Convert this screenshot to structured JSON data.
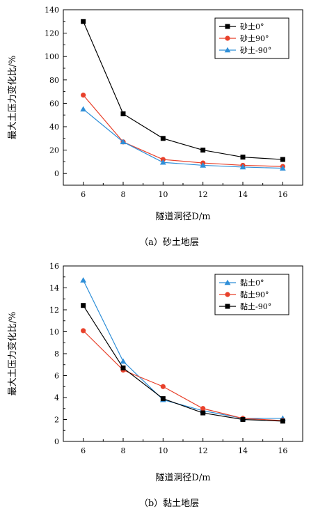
{
  "chart_data": [
    {
      "type": "line",
      "caption": "（a）砂土地层",
      "xlabel": "隧道洞径D/m",
      "ylabel": "最大土压力变化比/%",
      "x": [
        6,
        8,
        10,
        12,
        14,
        16
      ],
      "xlim": [
        5,
        17
      ],
      "ylim": [
        -10,
        140
      ],
      "yticks": [
        0,
        20,
        40,
        60,
        80,
        100,
        120,
        140
      ],
      "xticks": [
        6,
        8,
        10,
        12,
        14,
        16
      ],
      "legend": "top-right",
      "series": [
        {
          "name": "砂土0°",
          "marker": "square",
          "color": "#000000",
          "values": [
            130,
            51,
            30,
            20,
            14,
            12
          ]
        },
        {
          "name": "砂土90°",
          "marker": "circle",
          "color": "#e8402a",
          "values": [
            67,
            27,
            12,
            9,
            7,
            6
          ]
        },
        {
          "name": "砂土-90°",
          "marker": "triangle",
          "color": "#2f8fd8",
          "values": [
            55,
            27,
            9.5,
            7,
            5.5,
            4.5
          ]
        }
      ]
    },
    {
      "type": "line",
      "caption": "（b）黏土地层",
      "xlabel": "隧道洞径D/m",
      "ylabel": "最大土压力变化比/%",
      "x": [
        6,
        8,
        10,
        12,
        14,
        16
      ],
      "xlim": [
        5,
        17
      ],
      "ylim": [
        0,
        16
      ],
      "yticks": [
        0,
        2,
        4,
        6,
        8,
        10,
        12,
        14,
        16
      ],
      "xticks": [
        6,
        8,
        10,
        12,
        14,
        16
      ],
      "legend": "top-right",
      "series": [
        {
          "name": "黏土0°",
          "marker": "triangle",
          "color": "#2f8fd8",
          "values": [
            14.7,
            7.3,
            3.8,
            2.8,
            2.1,
            2.1
          ]
        },
        {
          "name": "黏土90°",
          "marker": "circle",
          "color": "#e8402a",
          "values": [
            10.1,
            6.5,
            5.0,
            3.0,
            2.1,
            1.9
          ]
        },
        {
          "name": "黏土-90°",
          "marker": "square",
          "color": "#000000",
          "values": [
            12.4,
            6.7,
            3.9,
            2.6,
            2.0,
            1.85
          ]
        }
      ]
    }
  ]
}
